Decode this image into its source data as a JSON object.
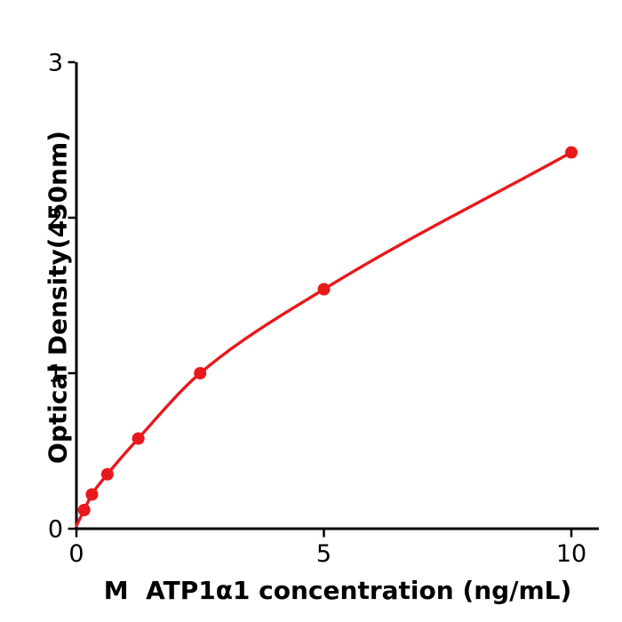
{
  "chart_data": {
    "type": "scatter",
    "title": "",
    "xlabel": "M  ATP1α1 concentration (ng/mL)",
    "ylabel": "Optical Density(450nm)",
    "points": [
      {
        "x": 0.156,
        "y": 0.12
      },
      {
        "x": 0.313,
        "y": 0.22
      },
      {
        "x": 0.625,
        "y": 0.35
      },
      {
        "x": 1.25,
        "y": 0.58
      },
      {
        "x": 2.5,
        "y": 1.0
      },
      {
        "x": 5,
        "y": 1.54
      },
      {
        "x": 10,
        "y": 2.42
      }
    ],
    "curve_start": {
      "x": 0,
      "y": 0.02
    },
    "x_ticks": [
      0,
      5,
      10
    ],
    "y_ticks": [
      0,
      1,
      2,
      3
    ],
    "xlim": [
      0,
      10.55
    ],
    "ylim": [
      0,
      3
    ],
    "grid": false,
    "legend": "none",
    "colors": {
      "series": "#e8191c",
      "axis": "#000000",
      "background": "#ffffff"
    }
  }
}
